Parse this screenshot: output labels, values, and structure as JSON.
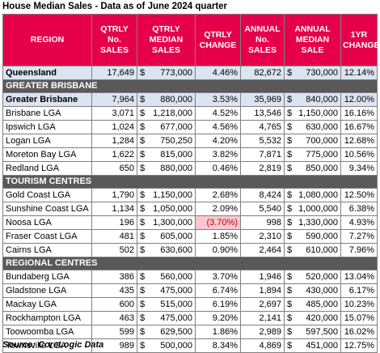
{
  "title": "House Median Sales - Data as of June 2024 quarter",
  "headers": {
    "region": "REGION",
    "qtrly_sales": "QTRLY No. SALES",
    "qtrly_median": "QTRLY MEDIAN SALES",
    "qtrly_change": "QTRLY CHANGE",
    "annual_sales": "ANNUAL No. SALES",
    "annual_median": "ANNUAL MEDIAN SALE",
    "yr_change": "1YR CHANGE"
  },
  "currency_symbol": "$",
  "queensland": {
    "region": "Queensland",
    "qtrly_sales": "17,649",
    "qtrly_median": "773,000",
    "qtrly_change": "4.46%",
    "annual_sales": "82,672",
    "annual_median": "730,000",
    "yr_change": "12.14%"
  },
  "sections": [
    {
      "label": "GREATER BRISBANE",
      "rows": [
        {
          "region": "Greater Brisbane",
          "qtrly_sales": "7,964",
          "qtrly_median": "880,000",
          "qtrly_change": "3.53%",
          "annual_sales": "35,969",
          "annual_median": "840,000",
          "yr_change": "12.00%",
          "highlight": true
        },
        {
          "region": "Brisbane LGA",
          "qtrly_sales": "3,071",
          "qtrly_median": "1,218,000",
          "qtrly_change": "4.52%",
          "annual_sales": "13,546",
          "annual_median": "1,150,000",
          "yr_change": "16.16%"
        },
        {
          "region": "Ipswich LGA",
          "qtrly_sales": "1,024",
          "qtrly_median": "677,000",
          "qtrly_change": "4.56%",
          "annual_sales": "4,765",
          "annual_median": "630,000",
          "yr_change": "16.67%"
        },
        {
          "region": "Logan LGA",
          "qtrly_sales": "1,284",
          "qtrly_median": "750,250",
          "qtrly_change": "4.20%",
          "annual_sales": "5,532",
          "annual_median": "700,000",
          "yr_change": "12.68%"
        },
        {
          "region": "Moreton Bay LGA",
          "qtrly_sales": "1,622",
          "qtrly_median": "815,000",
          "qtrly_change": "3.82%",
          "annual_sales": "7,871",
          "annual_median": "775,000",
          "yr_change": "10.56%"
        },
        {
          "region": "Redland LGA",
          "qtrly_sales": "650",
          "qtrly_median": "880,000",
          "qtrly_change": "0.46%",
          "annual_sales": "2,819",
          "annual_median": "850,000",
          "yr_change": "9.34%"
        }
      ]
    },
    {
      "label": "TOURISM CENTRES",
      "rows": [
        {
          "region": "Gold Coast LGA",
          "qtrly_sales": "1,790",
          "qtrly_median": "1,150,000",
          "qtrly_change": "2.68%",
          "annual_sales": "8,424",
          "annual_median": "1,080,000",
          "yr_change": "12.50%"
        },
        {
          "region": "Sunshine Coast LGA",
          "qtrly_sales": "1,134",
          "qtrly_median": "1,050,000",
          "qtrly_change": "2.09%",
          "annual_sales": "5,540",
          "annual_median": "1,000,000",
          "yr_change": "6.38%"
        },
        {
          "region": "Noosa LGA",
          "qtrly_sales": "196",
          "qtrly_median": "1,300,000",
          "qtrly_change": "(3.70%)",
          "annual_sales": "998",
          "annual_median": "1,330,000",
          "yr_change": "4.93%",
          "negative": true
        },
        {
          "region": "Fraser Coast LGA",
          "qtrly_sales": "481",
          "qtrly_median": "605,000",
          "qtrly_change": "1.85%",
          "annual_sales": "2,310",
          "annual_median": "590,000",
          "yr_change": "7.27%"
        },
        {
          "region": "Cairns LGA",
          "qtrly_sales": "502",
          "qtrly_median": "630,600",
          "qtrly_change": "0.90%",
          "annual_sales": "2,464",
          "annual_median": "610,000",
          "yr_change": "7.96%"
        }
      ]
    },
    {
      "label": "REGIONAL CENTRES",
      "rows": [
        {
          "region": "Bundaberg LGA",
          "qtrly_sales": "386",
          "qtrly_median": "560,000",
          "qtrly_change": "3.70%",
          "annual_sales": "1,946",
          "annual_median": "520,000",
          "yr_change": "13.04%"
        },
        {
          "region": "Gladstone LGA",
          "qtrly_sales": "435",
          "qtrly_median": "475,000",
          "qtrly_change": "6.74%",
          "annual_sales": "1,894",
          "annual_median": "430,000",
          "yr_change": "6.17%"
        },
        {
          "region": "Mackay LGA",
          "qtrly_sales": "600",
          "qtrly_median": "515,000",
          "qtrly_change": "6.19%",
          "annual_sales": "2,697",
          "annual_median": "485,000",
          "yr_change": "10.23%"
        },
        {
          "region": "Rockhampton LGA",
          "qtrly_sales": "463",
          "qtrly_median": "475,000",
          "qtrly_change": "9.20%",
          "annual_sales": "2,141",
          "annual_median": "420,000",
          "yr_change": "15.07%"
        },
        {
          "region": "Toowoomba LGA",
          "qtrly_sales": "599",
          "qtrly_median": "629,500",
          "qtrly_change": "1.86%",
          "annual_sales": "2,989",
          "annual_median": "597,500",
          "yr_change": "16.02%"
        },
        {
          "region": "Townsville LGA",
          "qtrly_sales": "989",
          "qtrly_median": "500,000",
          "qtrly_change": "8.34%",
          "annual_sales": "4,869",
          "annual_median": "451,000",
          "yr_change": "12.75%"
        }
      ]
    }
  ],
  "source": "Source: CoreLogic Data"
}
